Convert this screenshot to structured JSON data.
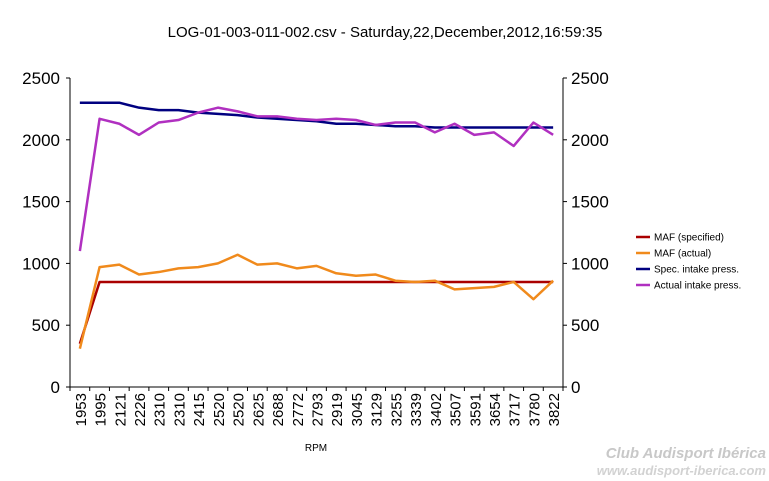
{
  "chart_data": {
    "type": "line",
    "title": "LOG-01-003-011-002.csv - Saturday,22,December,2012,16:59:35",
    "xlabel": "RPM",
    "ylabel": "",
    "ylim": [
      0,
      2500
    ],
    "yticks": [
      0,
      500,
      1000,
      1500,
      2000,
      2500
    ],
    "secondary_ylim": [
      0,
      2500
    ],
    "grid": false,
    "legend_position": "right",
    "categories": [
      "1953",
      "1995",
      "2121",
      "2226",
      "2310",
      "2310",
      "2415",
      "2520",
      "2520",
      "2625",
      "2688",
      "2772",
      "2793",
      "2919",
      "3045",
      "3129",
      "3255",
      "3339",
      "3402",
      "3507",
      "3591",
      "3654",
      "3717",
      "3780",
      "3822"
    ],
    "series": [
      {
        "name": "MAF (specified)",
        "color": "#aa0000",
        "values": [
          350,
          850,
          850,
          850,
          850,
          850,
          850,
          850,
          850,
          850,
          850,
          850,
          850,
          850,
          850,
          850,
          850,
          850,
          850,
          850,
          850,
          850,
          850,
          850,
          850
        ]
      },
      {
        "name": "MAF (actual)",
        "color": "#f08a1c",
        "values": [
          310,
          970,
          990,
          910,
          930,
          960,
          970,
          1000,
          1070,
          990,
          1000,
          960,
          980,
          920,
          900,
          910,
          860,
          850,
          860,
          790,
          800,
          810,
          850,
          710,
          860
        ]
      },
      {
        "name": "Spec. intake press.",
        "color": "#000080",
        "values": [
          2300,
          2300,
          2300,
          2260,
          2240,
          2240,
          2220,
          2210,
          2200,
          2180,
          2170,
          2160,
          2150,
          2130,
          2130,
          2120,
          2110,
          2110,
          2100,
          2100,
          2100,
          2100,
          2100,
          2100,
          2100
        ]
      },
      {
        "name": "Actual intake press.",
        "color": "#b030c0",
        "values": [
          1100,
          2170,
          2130,
          2040,
          2140,
          2160,
          2220,
          2260,
          2230,
          2190,
          2190,
          2170,
          2160,
          2170,
          2160,
          2120,
          2140,
          2140,
          2060,
          2130,
          2040,
          2060,
          1950,
          2140,
          2040
        ]
      }
    ]
  },
  "watermark": {
    "brand": "Club Audisport Ibérica",
    "url": "www.audisport-iberica.com"
  }
}
